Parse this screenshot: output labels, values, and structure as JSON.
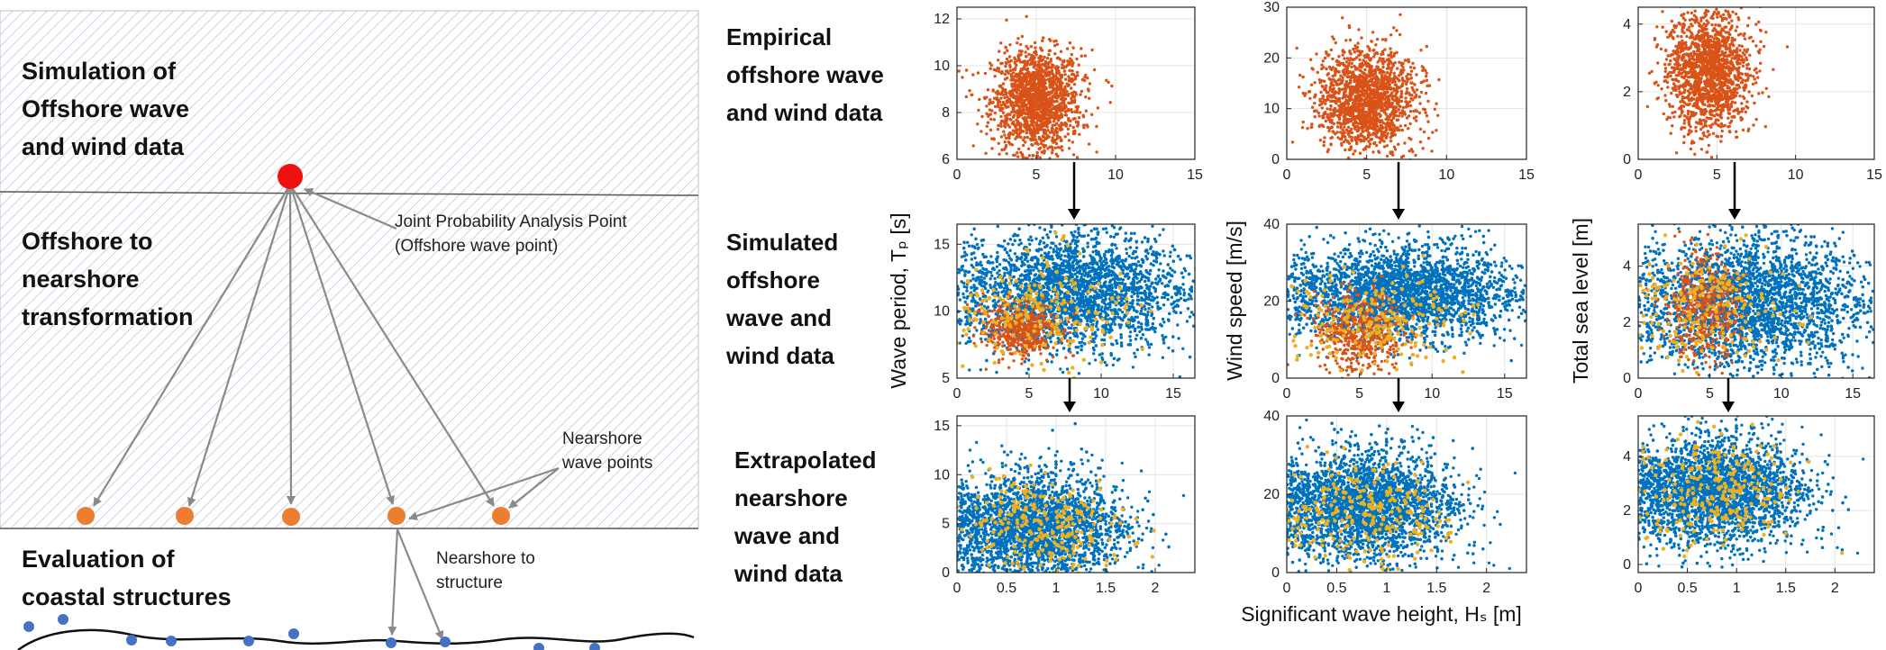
{
  "left_diagram": {
    "zones": [
      {
        "id": "offshore",
        "label": "Simulation of\nOffshore wave\nand wind data"
      },
      {
        "id": "transformation",
        "label": "Offshore to\nnearshore\ntransformation"
      },
      {
        "id": "structures",
        "label": "Evaluation of\ncoastal structures"
      }
    ],
    "annotations": {
      "joint_point": "Joint Probability Analysis Point\n(Offshore wave point)",
      "nearshore_points": "Nearshore\nwave points",
      "nearshore_structure": "Nearshore to\nstructure"
    },
    "colors": {
      "hatch": "#c9d3e2",
      "offshore_point": "#ee1111",
      "nearshore_point": "#ed7d31",
      "structure_point": "#4472c4",
      "arrow": "#8a8a8a"
    }
  },
  "row_labels": [
    "Empirical\noffshore wave\nand wind data",
    "Simulated\noffshore\nwave and\nwind data",
    "Extrapolated\nnearshore\nwave and\nwind data"
  ],
  "axis_labels": {
    "y": [
      "Wave period, Tₚ [s]",
      "Wind speed [m/s]",
      "Total sea level [m]"
    ],
    "x": "Significant wave height, Hₛ [m]"
  },
  "colors": {
    "empirical": "#d95319",
    "simulated": "#0072bd",
    "highlight": "#edb120",
    "arrow": "#000000"
  },
  "chart_data": [
    {
      "type": "scatter",
      "row": 0,
      "col": 0,
      "xlim": [
        0,
        15
      ],
      "ylim": [
        6,
        12.5
      ],
      "xticks": [
        0,
        5,
        10,
        15
      ],
      "yticks": [
        6,
        8,
        10,
        12
      ],
      "grid": true,
      "series": [
        {
          "role": "empirical",
          "color": "#d95319",
          "count": 1600,
          "cx": 5,
          "cy": 8.5,
          "sx": 1.4,
          "sy": 1.1
        }
      ]
    },
    {
      "type": "scatter",
      "row": 0,
      "col": 1,
      "xlim": [
        0,
        15
      ],
      "ylim": [
        0,
        30
      ],
      "xticks": [
        0,
        5,
        10,
        15
      ],
      "yticks": [
        0,
        10,
        20,
        30
      ],
      "grid": true,
      "series": [
        {
          "role": "empirical",
          "color": "#d95319",
          "count": 1600,
          "cx": 5,
          "cy": 12,
          "sx": 1.5,
          "sy": 5
        }
      ]
    },
    {
      "type": "scatter",
      "row": 0,
      "col": 2,
      "xlim": [
        0,
        15
      ],
      "ylim": [
        0,
        4.5
      ],
      "xticks": [
        0,
        5,
        10,
        15
      ],
      "yticks": [
        0,
        2,
        4
      ],
      "grid": true,
      "series": [
        {
          "role": "empirical",
          "color": "#d95319",
          "count": 1600,
          "cx": 4.5,
          "cy": 2.6,
          "sx": 1.3,
          "sy": 0.9
        }
      ]
    },
    {
      "type": "scatter",
      "row": 1,
      "col": 0,
      "xlim": [
        0,
        16.5
      ],
      "ylim": [
        5,
        16.5
      ],
      "xticks": [
        0,
        5,
        10,
        15
      ],
      "yticks": [
        5,
        10,
        15
      ],
      "grid": true,
      "series": [
        {
          "role": "simulated",
          "color": "#0072bd",
          "count": 3500,
          "cx": 8,
          "cy": 11.5,
          "sx": 4,
          "sy": 2.2
        },
        {
          "role": "empirical",
          "color": "#d95319",
          "count": 500,
          "cx": 4.5,
          "cy": 8.5,
          "sx": 1.3,
          "sy": 1
        },
        {
          "role": "highlight",
          "color": "#edb120",
          "count": 220,
          "cx": 6,
          "cy": 10,
          "sx": 3,
          "sy": 2
        }
      ]
    },
    {
      "type": "scatter",
      "row": 1,
      "col": 1,
      "xlim": [
        0,
        16.5
      ],
      "ylim": [
        0,
        40
      ],
      "xticks": [
        0,
        5,
        10,
        15
      ],
      "yticks": [
        0,
        20,
        40
      ],
      "grid": true,
      "series": [
        {
          "role": "simulated",
          "color": "#0072bd",
          "count": 3500,
          "cx": 8,
          "cy": 22,
          "sx": 4,
          "sy": 6
        },
        {
          "role": "empirical",
          "color": "#d95319",
          "count": 500,
          "cx": 5,
          "cy": 12,
          "sx": 1.5,
          "sy": 5
        },
        {
          "role": "highlight",
          "color": "#edb120",
          "count": 220,
          "cx": 6,
          "cy": 15,
          "sx": 3,
          "sy": 6
        }
      ]
    },
    {
      "type": "scatter",
      "row": 1,
      "col": 2,
      "xlim": [
        0,
        16.5
      ],
      "ylim": [
        0,
        5.5
      ],
      "xticks": [
        0,
        5,
        10,
        15
      ],
      "yticks": [
        0,
        2,
        4
      ],
      "grid": true,
      "series": [
        {
          "role": "simulated",
          "color": "#0072bd",
          "count": 3500,
          "cx": 8,
          "cy": 2.7,
          "sx": 4,
          "sy": 1.2
        },
        {
          "role": "empirical",
          "color": "#d95319",
          "count": 500,
          "cx": 4.5,
          "cy": 2.5,
          "sx": 1.3,
          "sy": 0.9
        },
        {
          "role": "highlight",
          "color": "#edb120",
          "count": 220,
          "cx": 5,
          "cy": 2.6,
          "sx": 2.5,
          "sy": 1
        }
      ]
    },
    {
      "type": "scatter",
      "row": 2,
      "col": 0,
      "xlim": [
        0,
        2.4
      ],
      "ylim": [
        0,
        16
      ],
      "xticks": [
        0,
        0.5,
        1,
        1.5,
        2
      ],
      "yticks": [
        0,
        5,
        10,
        15
      ],
      "grid": true,
      "series": [
        {
          "role": "simulated",
          "color": "#0072bd",
          "count": 3500,
          "cx": 0.8,
          "cy": 4.5,
          "sx": 0.45,
          "sy": 2.8
        },
        {
          "role": "highlight",
          "color": "#edb120",
          "count": 250,
          "cx": 0.9,
          "cy": 4.5,
          "sx": 0.4,
          "sy": 2.5
        }
      ]
    },
    {
      "type": "scatter",
      "row": 2,
      "col": 1,
      "xlim": [
        0,
        2.4
      ],
      "ylim": [
        0,
        40
      ],
      "xticks": [
        0,
        0.5,
        1,
        1.5,
        2
      ],
      "yticks": [
        0,
        20,
        40
      ],
      "grid": true,
      "series": [
        {
          "role": "simulated",
          "color": "#0072bd",
          "count": 3500,
          "cx": 0.8,
          "cy": 17,
          "sx": 0.45,
          "sy": 7
        },
        {
          "role": "highlight",
          "color": "#edb120",
          "count": 250,
          "cx": 0.8,
          "cy": 15,
          "sx": 0.4,
          "sy": 6
        }
      ]
    },
    {
      "type": "scatter",
      "row": 2,
      "col": 2,
      "xlim": [
        0,
        2.4
      ],
      "ylim": [
        -0.3,
        5.5
      ],
      "xticks": [
        0,
        0.5,
        1,
        1.5,
        2
      ],
      "yticks": [
        0,
        2,
        4
      ],
      "grid": true,
      "series": [
        {
          "role": "simulated",
          "color": "#0072bd",
          "count": 3500,
          "cx": 0.8,
          "cy": 2.7,
          "sx": 0.45,
          "sy": 1
        },
        {
          "role": "highlight",
          "color": "#edb120",
          "count": 250,
          "cx": 0.8,
          "cy": 2.7,
          "sx": 0.4,
          "sy": 1
        }
      ]
    }
  ]
}
